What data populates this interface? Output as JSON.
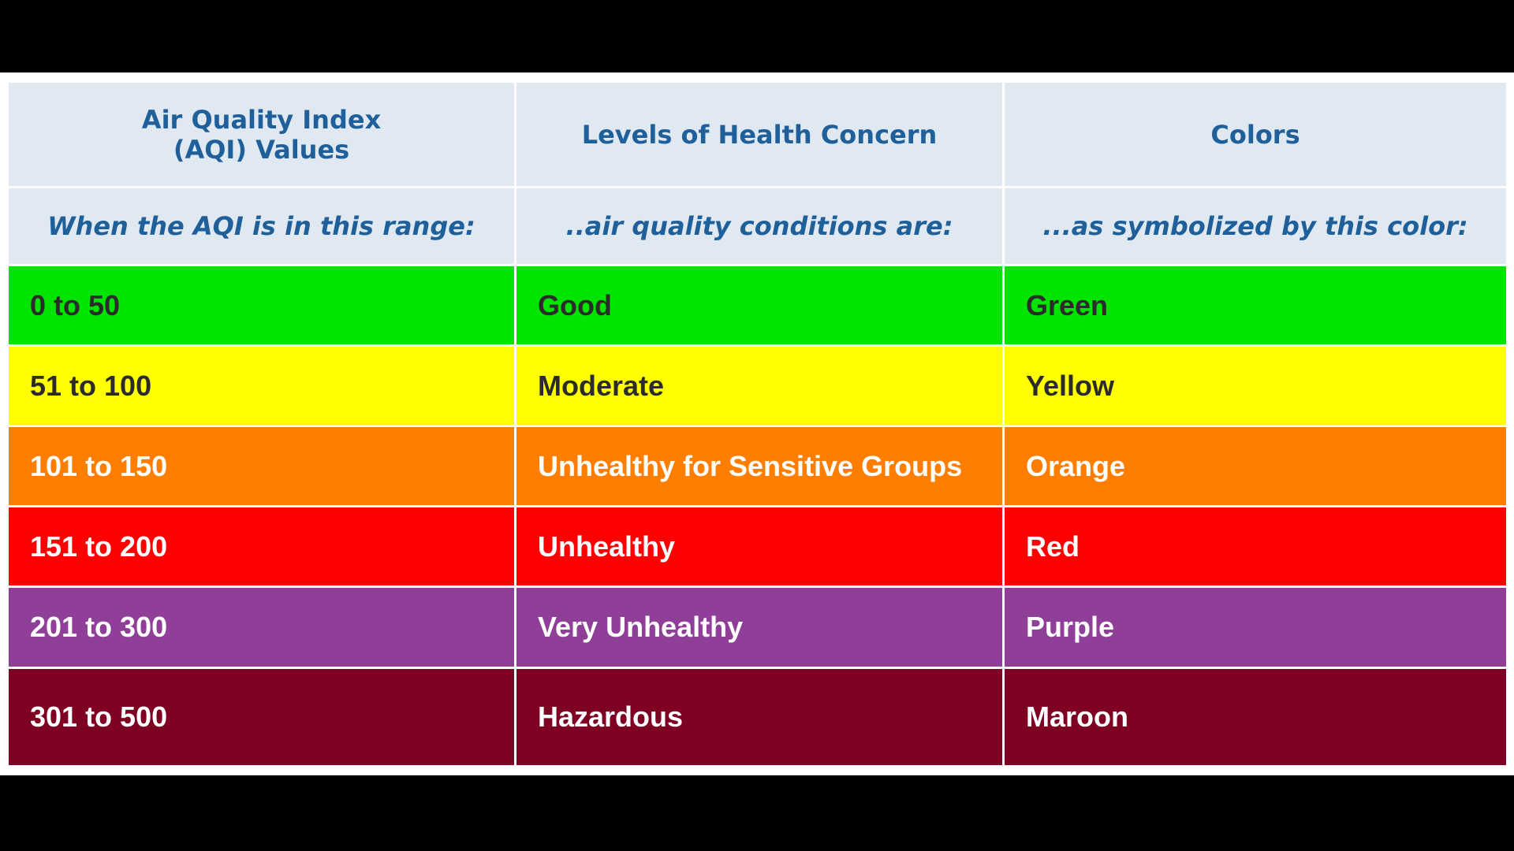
{
  "table": {
    "headers": {
      "col1": [
        "Air Quality Index",
        "(AQI) Values"
      ],
      "col2": "Levels of Health Concern",
      "col3": "Colors"
    },
    "subheaders": [
      "When the AQI is in this range:",
      "..air quality conditions are:",
      "...as symbolized by this color:"
    ],
    "rows": [
      {
        "range": "0 to 50",
        "level": "Good",
        "color_name": "Green",
        "bg": "#00e400",
        "text_color": "#2b2b2b"
      },
      {
        "range": "51 to 100",
        "level": "Moderate",
        "color_name": "Yellow",
        "bg": "#ffff00",
        "text_color": "#2b2b2b"
      },
      {
        "range": "101 to 150",
        "level": "Unhealthy for Sensitive Groups",
        "color_name": "Orange",
        "bg": "#ff7e00",
        "text_color": "#ffffff"
      },
      {
        "range": "151 to 200",
        "level": "Unhealthy",
        "color_name": "Red",
        "bg": "#ff0000",
        "text_color": "#ffffff"
      },
      {
        "range": "201 to 300",
        "level": "Very Unhealthy",
        "color_name": "Purple",
        "bg": "#8f3f97",
        "text_color": "#ffffff"
      },
      {
        "range": "301 to 500",
        "level": "Hazardous",
        "color_name": "Maroon",
        "bg": "#7e0023",
        "text_color": "#ffffff"
      }
    ]
  }
}
